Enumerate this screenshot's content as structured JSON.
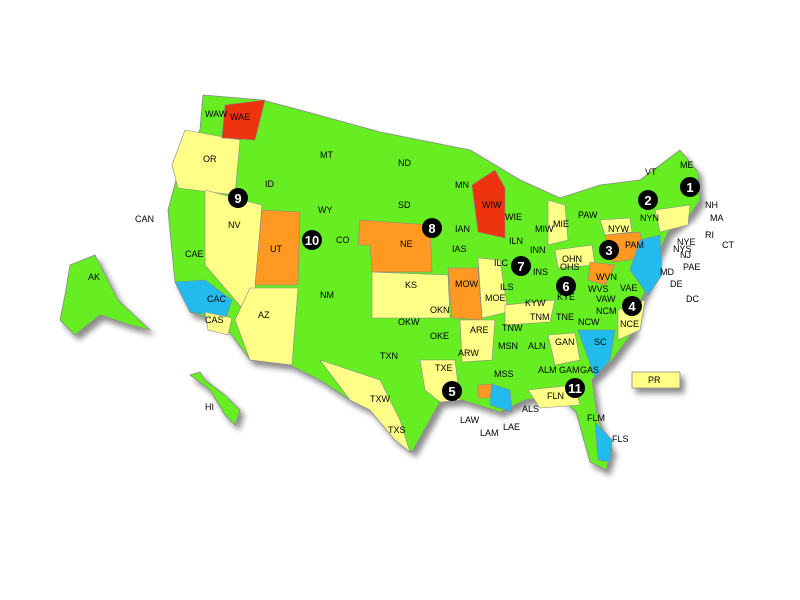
{
  "colors": {
    "green": "#66ee22",
    "yellow": "#ffff88",
    "orange": "#ff9922",
    "red": "#ee3311",
    "blue": "#22bbee"
  },
  "region_labels": [
    "WAW",
    "WAE",
    "OR",
    "CAN",
    "CAE",
    "CAC",
    "CAS",
    "ID",
    "MT",
    "WY",
    "UT",
    "NV",
    "AZ",
    "CO",
    "NM",
    "ND",
    "SD",
    "NE",
    "KS",
    "MN",
    "IAN",
    "IAS",
    "WIW",
    "WIE",
    "MIW",
    "MIE",
    "ILN",
    "ILC",
    "ILS",
    "INN",
    "INS",
    "OHN",
    "OHS",
    "KYW",
    "KYE",
    "MOW",
    "MOE",
    "OKN",
    "OKW",
    "OKE",
    "TXN",
    "TXW",
    "TXS",
    "TXE",
    "ARE",
    "ARW",
    "TNW",
    "TNM",
    "TNE",
    "MSN",
    "MSS",
    "ALN",
    "ALM",
    "ALS",
    "GAN",
    "GAM",
    "GAS",
    "FLN",
    "FLM",
    "FLS",
    "SC",
    "NCM",
    "NCW",
    "NCE",
    "VAW",
    "VAE",
    "WVS",
    "WVN",
    "PAW",
    "PAM",
    "PAE",
    "NYW",
    "NYN",
    "NYE",
    "NYS",
    "VT",
    "NH",
    "ME",
    "MA",
    "RI",
    "CT",
    "NJ",
    "MD",
    "DE",
    "DC",
    "LAW",
    "LAM",
    "LAE",
    "AK",
    "HI",
    "PR"
  ],
  "district_numbers": [
    "1",
    "2",
    "3",
    "4",
    "5",
    "6",
    "7",
    "8",
    "9",
    "10",
    "11"
  ]
}
